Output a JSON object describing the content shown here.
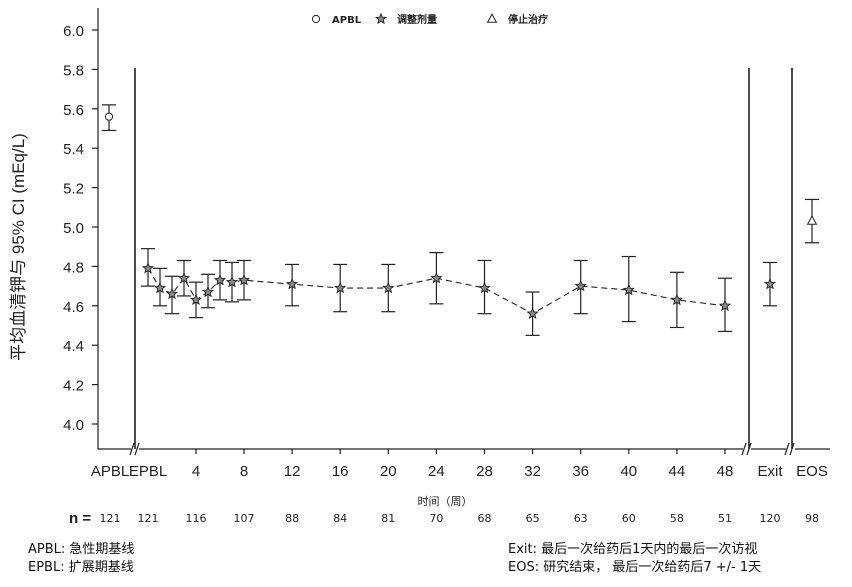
{
  "chart_data": {
    "type": "line",
    "ylabel": "平均血清钾与 95% CI (mEq/L)",
    "xlabel": "时间（周）",
    "ylim": [
      3.9,
      6.1
    ],
    "yticks": [
      "4.0",
      "4.2",
      "4.4",
      "4.6",
      "4.8",
      "5.0",
      "5.2",
      "5.4",
      "5.6",
      "5.8",
      "6.0"
    ],
    "legend": [
      {
        "marker": "circle",
        "label": "APBL"
      },
      {
        "marker": "star",
        "label": "调整剂量"
      },
      {
        "marker": "triangle",
        "label": "停止治疗"
      }
    ],
    "n_prefix": "n =",
    "baseline": {
      "label": "APBL",
      "mean": 5.56,
      "lower": 5.49,
      "upper": 5.62,
      "n": "121",
      "marker": "circle"
    },
    "treatment": {
      "marker": "star",
      "points": [
        {
          "week": "EPBL",
          "mean": 4.79,
          "lower": 4.7,
          "upper": 4.89,
          "n": "121"
        },
        {
          "week": 1,
          "mean": 4.69,
          "lower": 4.6,
          "upper": 4.79
        },
        {
          "week": 2,
          "mean": 4.66,
          "lower": 4.56,
          "upper": 4.75
        },
        {
          "week": 3,
          "mean": 4.74,
          "lower": 4.65,
          "upper": 4.83
        },
        {
          "week": 4,
          "mean": 4.63,
          "lower": 4.54,
          "upper": 4.72,
          "n": "116"
        },
        {
          "week": 5,
          "mean": 4.67,
          "lower": 4.59,
          "upper": 4.76
        },
        {
          "week": 6,
          "mean": 4.73,
          "lower": 4.63,
          "upper": 4.83
        },
        {
          "week": 7,
          "mean": 4.72,
          "lower": 4.62,
          "upper": 4.82
        },
        {
          "week": 8,
          "mean": 4.73,
          "lower": 4.63,
          "upper": 4.83,
          "n": "107"
        },
        {
          "week": 12,
          "mean": 4.71,
          "lower": 4.6,
          "upper": 4.81,
          "n": "88"
        },
        {
          "week": 16,
          "mean": 4.69,
          "lower": 4.57,
          "upper": 4.81,
          "n": "84"
        },
        {
          "week": 20,
          "mean": 4.69,
          "lower": 4.57,
          "upper": 4.81,
          "n": "81"
        },
        {
          "week": 24,
          "mean": 4.74,
          "lower": 4.61,
          "upper": 4.87,
          "n": "70"
        },
        {
          "week": 28,
          "mean": 4.69,
          "lower": 4.56,
          "upper": 4.83,
          "n": "68"
        },
        {
          "week": 32,
          "mean": 4.56,
          "lower": 4.45,
          "upper": 4.67,
          "n": "65"
        },
        {
          "week": 36,
          "mean": 4.7,
          "lower": 4.56,
          "upper": 4.83,
          "n": "63"
        },
        {
          "week": 40,
          "mean": 4.68,
          "lower": 4.52,
          "upper": 4.85,
          "n": "60"
        },
        {
          "week": 44,
          "mean": 4.63,
          "lower": 4.49,
          "upper": 4.77,
          "n": "58"
        },
        {
          "week": 48,
          "mean": 4.6,
          "lower": 4.47,
          "upper": 4.74,
          "n": "51"
        }
      ]
    },
    "exit": {
      "label": "Exit",
      "mean": 4.71,
      "lower": 4.6,
      "upper": 4.82,
      "n": "120",
      "marker": "star"
    },
    "eos": {
      "label": "EOS",
      "mean": 5.03,
      "lower": 4.92,
      "upper": 5.14,
      "n": "98",
      "marker": "triangle"
    },
    "xtick_labels": [
      "APBL",
      "EPBL",
      "4",
      "8",
      "12",
      "16",
      "20",
      "24",
      "28",
      "32",
      "36",
      "40",
      "44",
      "48",
      "Exit",
      "EOS"
    ],
    "grid": false
  },
  "footnotes": {
    "left": [
      "APBL: 急性期基线",
      "EPBL: 扩展期基线"
    ],
    "right": [
      "Exit: 最后一次给药后1天内的最后一次访视",
      "EOS: 研究结束， 最后一次给药后7 +/- 1天"
    ]
  },
  "colors": {
    "axis": "#222222",
    "marker_fill": "#8a8a8a",
    "line": "#222222"
  }
}
